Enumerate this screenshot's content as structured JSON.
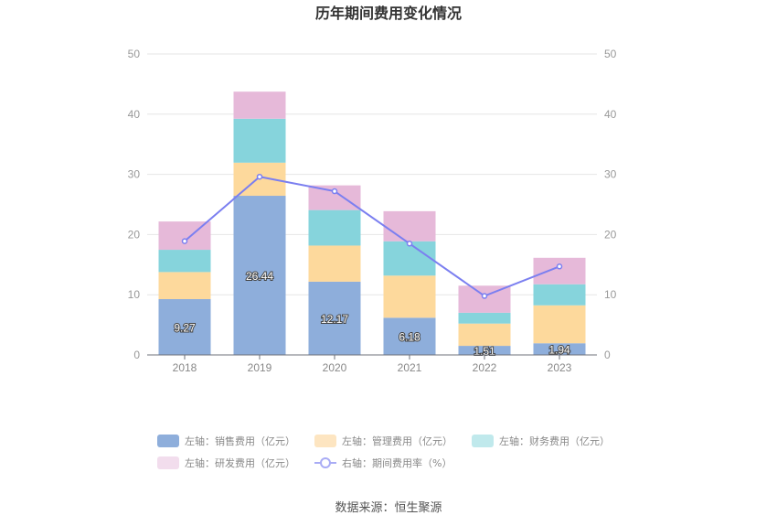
{
  "chart_data": {
    "type": "bar",
    "stacked": true,
    "title": "历年期间费用变化情况",
    "categories": [
      "2018",
      "2019",
      "2020",
      "2021",
      "2022",
      "2023"
    ],
    "y_left": {
      "ylim": [
        0,
        50
      ],
      "ticks": [
        "0",
        "10",
        "20",
        "30",
        "40",
        "50"
      ]
    },
    "y_right": {
      "ylim": [
        0,
        50
      ],
      "ticks": [
        "0",
        "10",
        "20",
        "30",
        "40",
        "50"
      ]
    },
    "series": [
      {
        "name": "左轴：销售费用（亿元）",
        "type": "bar",
        "axis": "left",
        "color": "#8eaedb",
        "legend_color": "#8eaedb",
        "values": [
          9.27,
          26.44,
          12.17,
          6.18,
          1.51,
          1.94
        ],
        "labels": [
          "9.27",
          "26.44",
          "12.17",
          "6.18",
          "1.51",
          "1.94"
        ]
      },
      {
        "name": "左轴：管理费用（亿元）",
        "type": "bar",
        "axis": "left",
        "color": "#fdd99c",
        "legend_color": "#fde5c1",
        "values": [
          4.5,
          5.5,
          6.0,
          7.0,
          3.7,
          6.3
        ]
      },
      {
        "name": "左轴：财务费用（亿元）",
        "type": "bar",
        "axis": "left",
        "color": "#86d4dc",
        "legend_color": "#c0e9ec",
        "values": [
          3.7,
          7.3,
          5.9,
          5.7,
          1.8,
          3.5
        ]
      },
      {
        "name": "左轴：研发费用（亿元）",
        "type": "bar",
        "axis": "left",
        "color": "#e6b9d9",
        "legend_color": "#f2dded",
        "values": [
          4.7,
          4.5,
          4.1,
          5.0,
          4.5,
          4.4
        ]
      },
      {
        "name": "右轴：期间费用率（%）",
        "type": "line",
        "axis": "right",
        "color": "#7b7ff0",
        "legend_color": "#a9acf5",
        "values": [
          18.9,
          29.6,
          27.2,
          18.5,
          9.8,
          14.7
        ]
      }
    ],
    "grid": true,
    "legend_position": "bottom"
  },
  "source": "数据来源：恒生聚源"
}
